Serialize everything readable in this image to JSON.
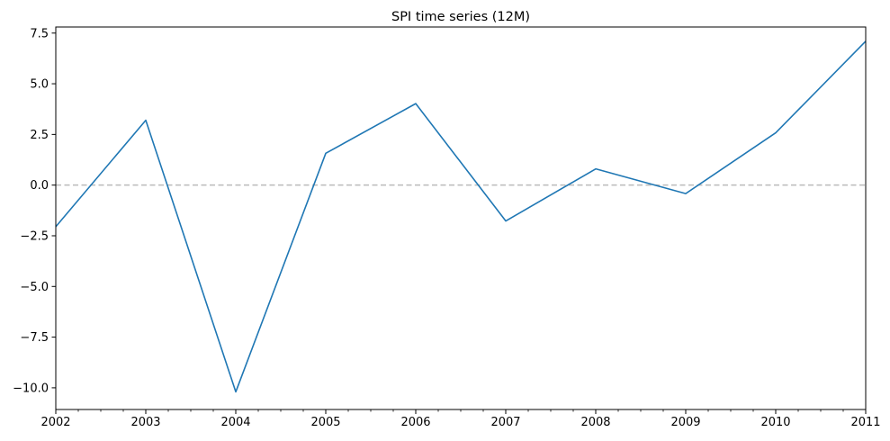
{
  "chart_data": {
    "type": "line",
    "title": "SPI time series (12M)",
    "xlabel": "",
    "ylabel": "",
    "x": [
      "2002",
      "2003",
      "2004",
      "2005",
      "2006",
      "2007",
      "2008",
      "2009",
      "2010",
      "2011"
    ],
    "series": [
      {
        "values": [
          -2.05,
          3.2,
          -10.2,
          1.57,
          4.02,
          -1.77,
          0.8,
          -0.42,
          2.58,
          7.1
        ],
        "color": "#1f77b4"
      }
    ],
    "xlim": [
      2002,
      2011
    ],
    "ylim": [
      -11.07,
      7.8
    ],
    "xticks_major": [
      "2002",
      "2003",
      "2004",
      "2005",
      "2006",
      "2007",
      "2008",
      "2009",
      "2010",
      "2011"
    ],
    "yticks": [
      "7.5",
      "5.0",
      "2.5",
      "0.0",
      "−2.5",
      "−5.0",
      "−7.5",
      "−10.0"
    ],
    "ytick_values": [
      7.5,
      5.0,
      2.5,
      0.0,
      -2.5,
      -5.0,
      -7.5,
      -10.0
    ],
    "reference_line": {
      "y": 0.0,
      "style": "dashed",
      "color": "#bbbbbb"
    },
    "grid": false,
    "legend": "none"
  }
}
